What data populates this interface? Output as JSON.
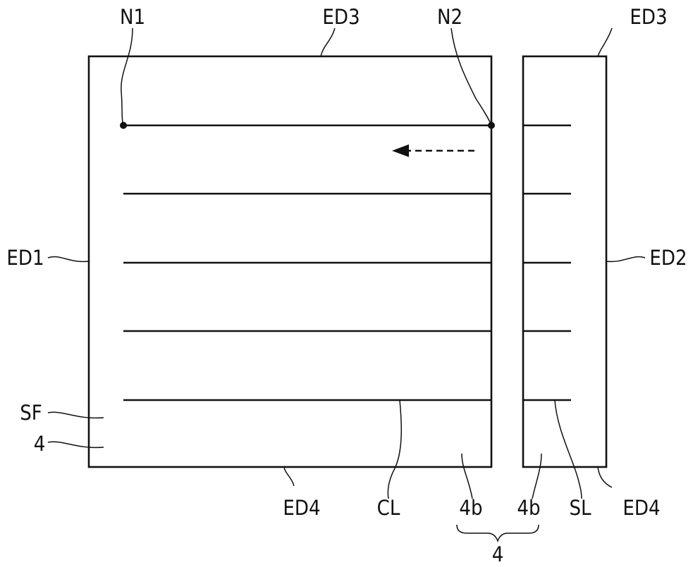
{
  "labels": {
    "n1": "N1",
    "ed3_left": "ED3",
    "n2": "N2",
    "ed3_right": "ED3",
    "ed1": "ED1",
    "ed2": "ED2",
    "sf": "SF",
    "four_left": "4",
    "ed4_left": "ED4",
    "cl": "CL",
    "fourb_a": "4b",
    "fourb_b": "4b",
    "sl": "SL",
    "ed4_right": "ED4",
    "four_bottom": "4"
  }
}
